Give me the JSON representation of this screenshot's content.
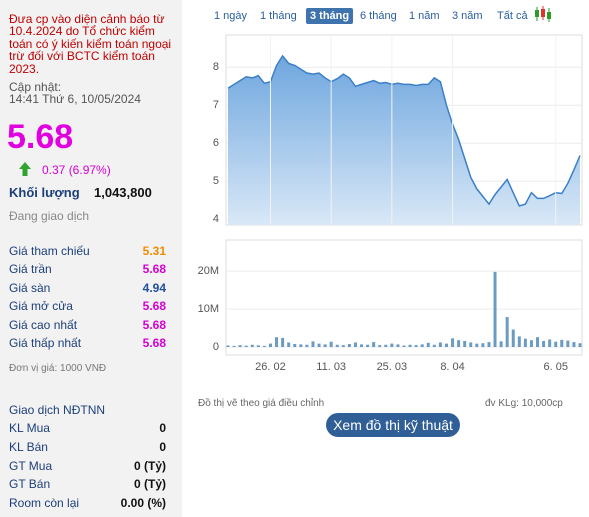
{
  "warning": "Đưa cp vào diện cảnh báo từ 10.4.2024 do Tổ chức kiểm toán có ý kiến kiểm toán ngoại trừ đối với BCTC kiểm toán 2023.",
  "updated_label": "Cập nhật:",
  "updated_time": "14:41 Thứ 6, 10/05/2024",
  "price": "5.68",
  "change": "0.37 (6.97%)",
  "volume_label": "Khối lượng",
  "volume": "1,043,800",
  "status": "Đang giao dịch",
  "price_rows": [
    {
      "label": "Giá tham chiếu",
      "value": "5.31",
      "color": "#f08c00"
    },
    {
      "label": "Giá trần",
      "value": "5.68",
      "color": "#d400d4"
    },
    {
      "label": "Giá sàn",
      "value": "4.94",
      "color": "#1e4fa0"
    },
    {
      "label": "Giá mở cửa",
      "value": "5.68",
      "color": "#d400d4"
    },
    {
      "label": "Giá cao nhất",
      "value": "5.68",
      "color": "#d400d4"
    },
    {
      "label": "Giá thấp nhất",
      "value": "5.68",
      "color": "#d400d4"
    }
  ],
  "unit_note": "Đơn vị giá: 1000 VNĐ",
  "foreign": {
    "title": "Giao dịch NĐTNN",
    "rows": [
      {
        "label": "KL Mua",
        "value": "0"
      },
      {
        "label": "KL Bán",
        "value": "0"
      },
      {
        "label": "GT Mua",
        "value": "0 (Tỷ)"
      },
      {
        "label": "GT Bán",
        "value": "0 (Tỷ)"
      },
      {
        "label": "Room còn lại",
        "value": "0.00 (%)"
      }
    ]
  },
  "tabs": [
    "1 ngày",
    "1 tháng",
    "3 tháng",
    "6 tháng",
    "1 năm",
    "3 năm",
    "Tất cả"
  ],
  "active_tab": 2,
  "footnote_left": "Đồ thị vẽ theo giá điều chỉnh",
  "footnote_right": "đv KLg: 10,000cp",
  "button": "Xem đồ thị kỹ thuật",
  "chart_data": [
    {
      "type": "area",
      "color": "#3a7fc8",
      "values": [
        7.45,
        7.55,
        7.65,
        7.75,
        7.72,
        7.78,
        7.58,
        7.62,
        8.05,
        8.3,
        8.1,
        8.05,
        7.95,
        7.85,
        7.82,
        7.85,
        7.72,
        7.62,
        7.7,
        7.82,
        7.72,
        7.5,
        7.55,
        7.6,
        7.65,
        7.58,
        7.6,
        7.55,
        7.58,
        7.55,
        7.55,
        7.52,
        7.55,
        7.55,
        7.72,
        7.62,
        7.0,
        6.5,
        6.1,
        5.6,
        5.1,
        4.8,
        4.6,
        4.4,
        4.65,
        4.85,
        5.05,
        4.7,
        4.35,
        4.4,
        4.7,
        4.55,
        4.55,
        4.62,
        4.7,
        4.68,
        4.95,
        5.3,
        5.68
      ],
      "ylim": [
        3.85,
        8.85
      ],
      "yticks": [
        4,
        5,
        6,
        7,
        8
      ],
      "grid": true
    },
    {
      "type": "bar",
      "color": "#6b9bc3",
      "categories": [
        null,
        null,
        null,
        null,
        null,
        null,
        null,
        "26. 02",
        null,
        null,
        null,
        null,
        null,
        null,
        null,
        null,
        null,
        "11. 03",
        null,
        null,
        null,
        null,
        null,
        null,
        null,
        null,
        null,
        "25. 03",
        null,
        null,
        null,
        null,
        null,
        null,
        null,
        null,
        null,
        "8. 04",
        null,
        null,
        null,
        null,
        null,
        null,
        null,
        null,
        null,
        null,
        null,
        null,
        null,
        null,
        null,
        null,
        "6. 05",
        null,
        null,
        null,
        null
      ],
      "values": [
        400000,
        300000,
        500000,
        350000,
        600000,
        450000,
        300000,
        900000,
        2600000,
        2400000,
        1200000,
        800000,
        700000,
        600000,
        1500000,
        900000,
        700000,
        1400000,
        600000,
        500000,
        800000,
        1200000,
        700000,
        600000,
        1300000,
        500000,
        600000,
        900000,
        700000,
        400000,
        600000,
        500000,
        700000,
        1100000,
        600000,
        1200000,
        900000,
        2300000,
        1800000,
        1600000,
        1200000,
        900000,
        1000000,
        1300000,
        19800000,
        1500000,
        7900000,
        4600000,
        2800000,
        2200000,
        1800000,
        2600000,
        1600000,
        2000000,
        1400000,
        1900000,
        1700000,
        1300000,
        1000000
      ],
      "ylim": [
        -2100000,
        28200000
      ],
      "yticks": [
        {
          "value": 0,
          "label": "0"
        },
        {
          "value": 10000000,
          "label": "10M"
        },
        {
          "value": 20000000,
          "label": "20M"
        }
      ],
      "grid": true
    }
  ]
}
